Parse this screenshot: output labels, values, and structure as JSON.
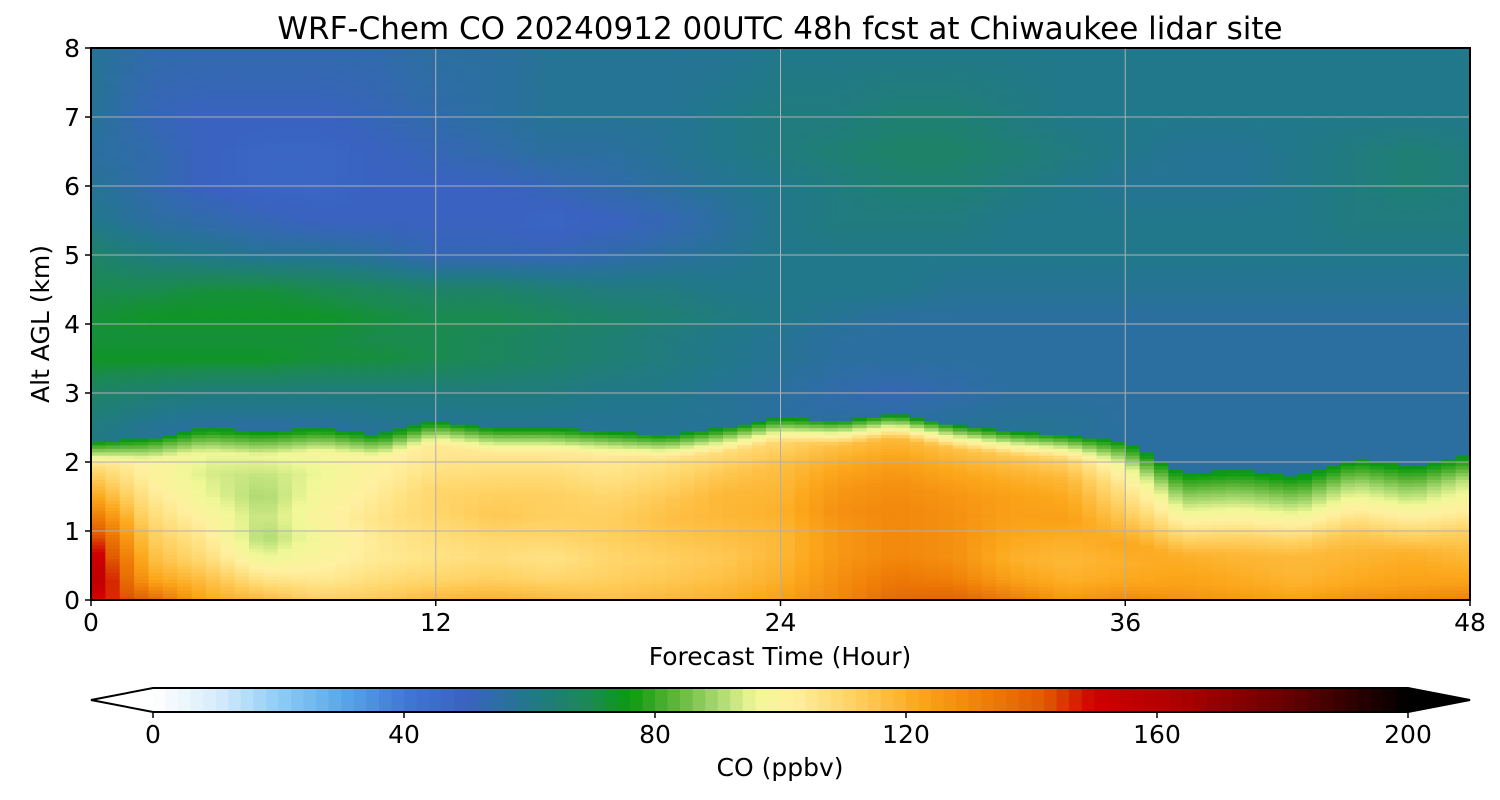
{
  "chart_data": {
    "type": "heatmap",
    "title": "WRF-Chem CO  20240912 00UTC 48h fcst at Chiwaukee lidar site",
    "xlabel": "Forecast Time (Hour)",
    "ylabel": "Alt AGL (km)",
    "xlim": [
      0,
      48
    ],
    "ylim": [
      0,
      8
    ],
    "xticks": [
      0,
      12,
      24,
      36,
      48
    ],
    "yticks": [
      0,
      1,
      2,
      3,
      4,
      5,
      6,
      7,
      8
    ],
    "grid": true,
    "x": [
      0,
      2,
      4,
      6,
      8,
      10,
      12,
      14,
      16,
      18,
      20,
      22,
      24,
      26,
      28,
      30,
      32,
      34,
      36,
      38,
      40,
      42,
      44,
      46,
      48
    ],
    "y": [
      0,
      0.25,
      0.5,
      0.75,
      1.0,
      1.25,
      1.5,
      1.75,
      2.0,
      2.25,
      2.5,
      3.0,
      3.5,
      4.0,
      4.5,
      5.0,
      5.5,
      6.0,
      6.5,
      7.0,
      7.5,
      8.0
    ],
    "boundary_layer_top_km": [
      1.95,
      2.0,
      2.15,
      2.1,
      2.15,
      2.05,
      2.25,
      2.15,
      2.15,
      2.1,
      2.05,
      2.15,
      2.3,
      2.25,
      2.35,
      2.2,
      2.1,
      2.05,
      1.95,
      1.5,
      1.55,
      1.45,
      1.7,
      1.6,
      1.75
    ],
    "pbl_co_ppbv": [
      [
        150,
        140,
        122,
        118,
        112,
        114,
        118,
        120,
        118,
        116,
        118,
        120,
        124,
        130,
        138,
        140,
        134,
        126,
        130,
        128,
        126,
        124,
        128,
        130,
        132
      ],
      [
        160,
        124,
        116,
        106,
        104,
        108,
        110,
        112,
        110,
        112,
        114,
        116,
        120,
        128,
        134,
        132,
        124,
        120,
        122,
        124,
        122,
        120,
        122,
        124,
        124
      ],
      [
        158,
        118,
        108,
        96,
        100,
        104,
        106,
        108,
        106,
        110,
        112,
        114,
        118,
        126,
        130,
        128,
        120,
        118,
        120,
        122,
        120,
        118,
        120,
        122,
        120
      ],
      [
        150,
        114,
        104,
        90,
        98,
        104,
        108,
        110,
        110,
        112,
        114,
        116,
        118,
        126,
        130,
        128,
        122,
        120,
        122,
        120,
        118,
        118,
        118,
        120,
        116
      ],
      [
        140,
        110,
        100,
        92,
        100,
        106,
        110,
        114,
        112,
        112,
        116,
        118,
        120,
        128,
        130,
        128,
        124,
        124,
        116,
        112,
        112,
        112,
        114,
        112,
        112
      ],
      [
        128,
        106,
        96,
        90,
        98,
        104,
        110,
        112,
        112,
        110,
        114,
        118,
        118,
        126,
        128,
        126,
        124,
        122,
        110,
        104,
        104,
        104,
        106,
        104,
        104
      ],
      [
        118,
        102,
        94,
        92,
        96,
        102,
        106,
        108,
        108,
        106,
        110,
        114,
        116,
        122,
        124,
        122,
        120,
        118,
        104,
        96,
        96,
        96,
        98,
        96,
        98
      ],
      [
        108,
        100,
        96,
        96,
        98,
        100,
        104,
        104,
        104,
        104,
        106,
        108,
        110,
        116,
        118,
        116,
        114,
        110,
        96,
        88,
        88,
        88,
        90,
        88,
        92
      ]
    ],
    "free_troposphere_co_ppbv": [
      [
        62,
        58,
        56,
        56,
        56,
        58,
        58,
        58,
        58,
        58,
        58,
        58,
        56,
        56,
        58,
        58,
        58,
        58,
        56,
        56,
        56,
        56,
        56,
        56,
        56
      ],
      [
        66,
        64,
        62,
        62,
        62,
        62,
        62,
        62,
        62,
        60,
        60,
        58,
        56,
        54,
        52,
        54,
        56,
        56,
        56,
        56,
        56,
        56,
        56,
        56,
        56
      ],
      [
        74,
        74,
        74,
        74,
        72,
        72,
        70,
        68,
        66,
        64,
        62,
        60,
        58,
        56,
        56,
        56,
        56,
        56,
        56,
        56,
        56,
        56,
        56,
        56,
        56
      ],
      [
        72,
        72,
        72,
        72,
        72,
        70,
        70,
        68,
        66,
        64,
        62,
        60,
        58,
        56,
        56,
        56,
        56,
        56,
        56,
        56,
        56,
        56,
        56,
        56,
        56
      ],
      [
        72,
        74,
        74,
        74,
        74,
        72,
        70,
        70,
        68,
        66,
        64,
        62,
        60,
        58,
        56,
        56,
        56,
        56,
        56,
        56,
        56,
        56,
        56,
        56,
        56
      ],
      [
        70,
        70,
        72,
        72,
        70,
        68,
        66,
        66,
        64,
        62,
        62,
        60,
        60,
        60,
        60,
        58,
        58,
        58,
        58,
        58,
        58,
        58,
        58,
        58,
        58
      ],
      [
        66,
        62,
        60,
        58,
        58,
        56,
        52,
        52,
        52,
        54,
        56,
        58,
        60,
        60,
        60,
        60,
        60,
        60,
        60,
        60,
        60,
        60,
        60,
        60,
        60
      ],
      [
        60,
        56,
        54,
        52,
        50,
        50,
        50,
        50,
        48,
        50,
        52,
        56,
        60,
        62,
        62,
        62,
        60,
        60,
        60,
        60,
        60,
        60,
        62,
        62,
        62
      ],
      [
        58,
        54,
        50,
        48,
        48,
        50,
        50,
        50,
        52,
        54,
        56,
        58,
        60,
        62,
        64,
        64,
        62,
        60,
        58,
        58,
        58,
        60,
        62,
        64,
        62
      ],
      [
        56,
        54,
        50,
        48,
        48,
        50,
        52,
        54,
        56,
        56,
        58,
        60,
        62,
        64,
        66,
        66,
        64,
        62,
        60,
        58,
        58,
        60,
        62,
        64,
        62
      ],
      [
        58,
        52,
        50,
        50,
        50,
        52,
        54,
        56,
        58,
        58,
        58,
        60,
        62,
        62,
        64,
        64,
        62,
        60,
        60,
        60,
        60,
        60,
        60,
        60,
        60
      ],
      [
        58,
        54,
        54,
        54,
        54,
        54,
        56,
        56,
        58,
        58,
        58,
        58,
        60,
        60,
        60,
        60,
        60,
        60,
        60,
        60,
        60,
        60,
        60,
        60,
        60
      ]
    ],
    "free_troposphere_levels_km": [
      2.5,
      3.0,
      3.5,
      3.8,
      4.1,
      4.5,
      5.0,
      5.5,
      6.0,
      6.5,
      7.0,
      8.0
    ],
    "colorbar": {
      "label": "CO  (ppbv)",
      "min": 0,
      "max": 200,
      "ticks": [
        0,
        40,
        80,
        120,
        160,
        200
      ],
      "extend": "both",
      "colors": [
        [
          0,
          "#ffffff"
        ],
        [
          10,
          "#d8ecfb"
        ],
        [
          20,
          "#8fcdf5"
        ],
        [
          30,
          "#5aa8ea"
        ],
        [
          40,
          "#4078d6"
        ],
        [
          50,
          "#3a62c0"
        ],
        [
          60,
          "#21788a"
        ],
        [
          70,
          "#1b8a50"
        ],
        [
          76,
          "#0a9a10"
        ],
        [
          82,
          "#52b030"
        ],
        [
          90,
          "#a8d870"
        ],
        [
          96,
          "#f0f896"
        ],
        [
          102,
          "#fff0a0"
        ],
        [
          112,
          "#ffd060"
        ],
        [
          122,
          "#fca81c"
        ],
        [
          132,
          "#f08008"
        ],
        [
          142,
          "#e05a00"
        ],
        [
          150,
          "#d00000"
        ],
        [
          165,
          "#a80000"
        ],
        [
          180,
          "#6a0000"
        ],
        [
          200,
          "#000000"
        ]
      ]
    }
  }
}
